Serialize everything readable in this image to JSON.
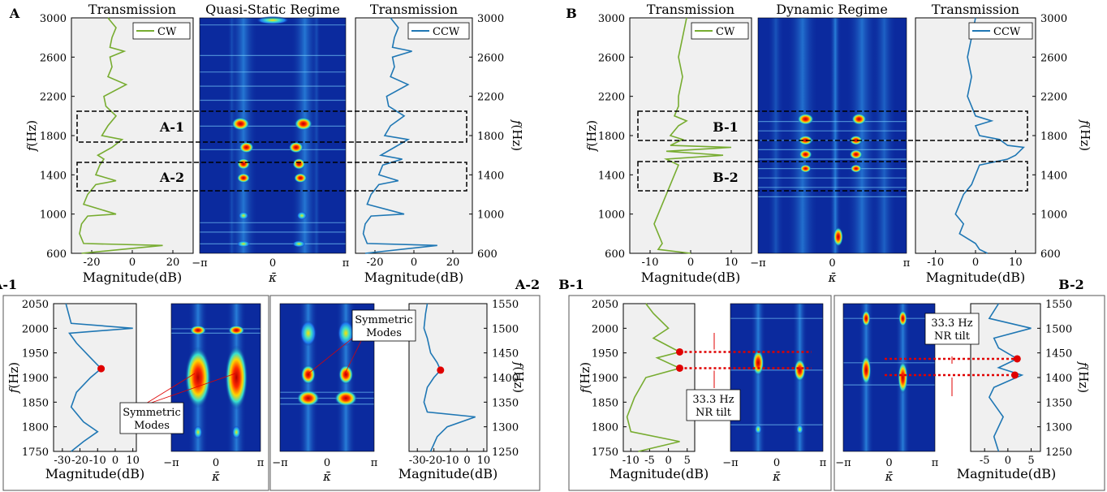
{
  "chart_data": [
    {
      "id": "A",
      "panel_label": "A",
      "type": "line",
      "subplots": [
        {
          "title": "Transmission",
          "xlabel": "Magnitude(dB)",
          "ylabel": "f(Hz)",
          "xticks": [
            "-20",
            "0",
            "20"
          ],
          "xlim": [
            -30,
            30
          ],
          "yticks": [
            "600",
            "1000",
            "1400",
            "1800",
            "2200",
            "2600",
            "3000"
          ],
          "ylim": [
            600,
            3000
          ],
          "legend": "CW",
          "color": "#77ac30",
          "series": [
            {
              "name": "CW",
              "freq": [
                600,
                680,
                700,
                800,
                900,
                980,
                1000,
                1100,
                1200,
                1300,
                1340,
                1400,
                1500,
                1560,
                1600,
                1680,
                1760,
                1800,
                1900,
                2000,
                2100,
                2200,
                2320,
                2400,
                2500,
                2600,
                2660,
                2700,
                2800,
                2900,
                3000
              ],
              "mag": [
                -25,
                15,
                -24,
                -26,
                -25,
                -22,
                -8,
                -24,
                -22,
                -18,
                -8,
                -18,
                -16,
                -14,
                -17,
                -10,
                -5,
                -15,
                -12,
                -8,
                -13,
                -14,
                -3,
                -12,
                -10,
                -11,
                -4,
                -11,
                -10,
                -8,
                -12
              ]
            }
          ]
        },
        {
          "title": "Quasi-Static Regime",
          "xlabel": "κ̄",
          "xticks": [
            "−π",
            "0",
            "π"
          ],
          "type": "heatmap"
        },
        {
          "title": "Transmission",
          "xlabel": "Magnitude(dB)",
          "ylabel": "f(Hz)",
          "xticks": [
            "-20",
            "0",
            "20"
          ],
          "xlim": [
            -30,
            30
          ],
          "yticks": [
            "600",
            "1000",
            "1400",
            "1800",
            "2200",
            "2600",
            "3000"
          ],
          "ylim": [
            600,
            3000
          ],
          "legend": "CCW",
          "color": "#1f77b4",
          "series": [
            {
              "name": "CCW",
              "freq": [
                600,
                680,
                700,
                800,
                900,
                980,
                1000,
                1100,
                1200,
                1300,
                1340,
                1400,
                1500,
                1560,
                1600,
                1680,
                1760,
                1800,
                1900,
                2000,
                2100,
                2200,
                2320,
                2400,
                2500,
                2600,
                2660,
                2700,
                2800,
                2900,
                3000
              ],
              "mag": [
                -25,
                12,
                -24,
                -26,
                -25,
                -22,
                -5,
                -24,
                -22,
                -18,
                -8,
                -18,
                -16,
                -6,
                -17,
                -10,
                -3,
                -15,
                -12,
                -5,
                -13,
                -14,
                -3,
                -12,
                -10,
                -11,
                -1,
                -11,
                -10,
                -8,
                -12
              ]
            }
          ]
        }
      ],
      "boxes": [
        "A-1",
        "A-2"
      ]
    },
    {
      "id": "B",
      "panel_label": "B",
      "type": "line",
      "subplots": [
        {
          "title": "Transmission",
          "xlabel": "Magnitude(dB)",
          "ylabel": "f(Hz)",
          "xticks": [
            "-10",
            "0",
            "10"
          ],
          "xlim": [
            -15,
            15
          ],
          "yticks": [
            "600",
            "1000",
            "1400",
            "1800",
            "2200",
            "2600",
            "3000"
          ],
          "ylim": [
            600,
            3000
          ],
          "legend": "CW",
          "color": "#77ac30"
        },
        {
          "title": "Dynamic Regime",
          "xlabel": "κ̄",
          "xticks": [
            "−π",
            "0",
            "π"
          ],
          "type": "heatmap"
        },
        {
          "title": "Transmission",
          "xlabel": "Magnitude(dB)",
          "ylabel": "f(Hz)",
          "xticks": [
            "-10",
            "0",
            "10"
          ],
          "xlim": [
            -15,
            15
          ],
          "yticks": [
            "600",
            "1000",
            "1400",
            "1800",
            "2200",
            "2600",
            "3000"
          ],
          "ylim": [
            600,
            3000
          ],
          "legend": "CCW",
          "color": "#1f77b4"
        }
      ],
      "boxes": [
        "B-1",
        "B-2"
      ]
    },
    {
      "id": "A-1",
      "panel_label": "A-1",
      "type": "line",
      "ylabel": "f(Hz)",
      "yticks": [
        "1750",
        "1800",
        "1850",
        "1900",
        "1950",
        "2000",
        "2050"
      ],
      "ylim": [
        1750,
        2050
      ],
      "xlabel": "Magnitude(dB)",
      "xticks": [
        "-30",
        "-20",
        "-10",
        "0",
        "10"
      ],
      "heatmap_xlabel": "κ̄",
      "heatmap_xticks": [
        "−π",
        "0",
        "π"
      ],
      "annotation": [
        "Symmetric",
        "Modes"
      ],
      "marker_freq": [
        1918
      ]
    },
    {
      "id": "A-2",
      "panel_label": "A-2",
      "type": "line",
      "ylabel": "f(Hz)",
      "yticks": [
        "1250",
        "1300",
        "1350",
        "1400",
        "1450",
        "1500",
        "1550"
      ],
      "ylim": [
        1250,
        1550
      ],
      "xlabel": "Magnitude(dB)",
      "xticks": [
        "-30",
        "-20",
        "-10",
        "0",
        "10"
      ],
      "heatmap_xlabel": "κ̄",
      "heatmap_xticks": [
        "−π",
        "0",
        "π"
      ],
      "annotation": [
        "Symmetric",
        "Modes"
      ],
      "marker_freq": [
        1415
      ]
    },
    {
      "id": "B-1",
      "panel_label": "B-1",
      "type": "line",
      "ylabel": "f(Hz)",
      "yticks": [
        "1750",
        "1800",
        "1850",
        "1900",
        "1950",
        "2000",
        "2050"
      ],
      "ylim": [
        1750,
        2050
      ],
      "xlabel": "Magnitude(dB)",
      "xticks": [
        "-10",
        "-5",
        "0",
        "5"
      ],
      "heatmap_xlabel": "κ̄",
      "heatmap_xticks": [
        "−π",
        "0",
        "π"
      ],
      "annotation": [
        "33.3 Hz",
        "NR tilt"
      ],
      "marker_freq": [
        1952,
        1919
      ]
    },
    {
      "id": "B-2",
      "panel_label": "B-2",
      "type": "line",
      "ylabel": "f(Hz)",
      "yticks": [
        "1250",
        "1300",
        "1350",
        "1400",
        "1450",
        "1500",
        "1550"
      ],
      "ylim": [
        1250,
        1550
      ],
      "xlabel": "Magnitude(dB)",
      "xticks": [
        "-5",
        "0",
        "5"
      ],
      "heatmap_xlabel": "κ̄",
      "heatmap_xticks": [
        "−π",
        "0",
        "π"
      ],
      "annotation": [
        "33.3 Hz",
        "NR tilt"
      ],
      "marker_freq": [
        1438,
        1405
      ]
    }
  ],
  "colors": {
    "cw": "#77ac30",
    "ccw": "#1f77b4",
    "marker": "#e00000",
    "heat_bg": "#0b2a9e",
    "plot_bg": "#f0f0f0"
  }
}
